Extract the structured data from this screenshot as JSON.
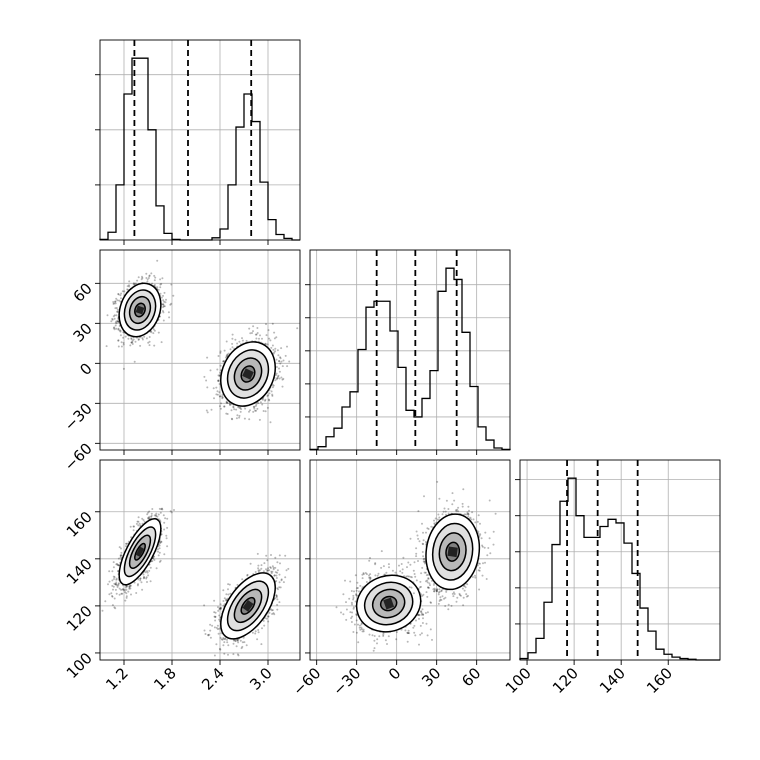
{
  "chart_data": {
    "type": "corner",
    "title": "",
    "grid": true,
    "parameters": [
      {
        "index": 0,
        "range": [
          0.9,
          3.4
        ],
        "ticks": [
          1.2,
          1.8,
          2.4,
          3.0
        ],
        "tick_labels": [
          "1.2",
          "1.8",
          "2.4",
          "3.0"
        ],
        "quantiles": [
          1.33,
          2.0,
          2.79
        ]
      },
      {
        "index": 1,
        "range": [
          -65,
          85
        ],
        "ticks": [
          -60,
          -30,
          0,
          30,
          60
        ],
        "tick_labels": [
          "−60",
          "−30",
          "0",
          "30",
          "60"
        ],
        "quantiles": [
          -15,
          14,
          45
        ]
      },
      {
        "index": 2,
        "range": [
          97,
          182
        ],
        "ticks": [
          100,
          120,
          140,
          160
        ],
        "tick_labels": [
          "100",
          "120",
          "140",
          "160"
        ],
        "quantiles": [
          117,
          130,
          147
        ]
      }
    ],
    "histograms": [
      {
        "param": 0,
        "bin_edges": [
          0.9,
          1.0,
          1.1,
          1.2,
          1.3,
          1.4,
          1.5,
          1.6,
          1.7,
          1.8,
          1.9,
          2.0,
          2.1,
          2.2,
          2.3,
          2.4,
          2.5,
          2.6,
          2.7,
          2.8,
          2.9,
          3.0,
          3.1,
          3.2,
          3.3,
          3.4
        ],
        "counts": [
          1,
          14,
          100,
          265,
          330,
          330,
          200,
          62,
          12,
          1,
          0,
          0,
          0,
          0,
          4,
          20,
          100,
          205,
          265,
          215,
          105,
          37,
          10,
          3,
          0
        ],
        "y_ticks": [
          100,
          200,
          300
        ]
      },
      {
        "param": 1,
        "bin_edges": [
          -65,
          -59,
          -53,
          -47,
          -41,
          -35,
          -29,
          -23,
          -17,
          -11,
          -5,
          1,
          7,
          13,
          19,
          25,
          31,
          37,
          43,
          49,
          55,
          61,
          67,
          73,
          79,
          85
        ],
        "counts": [
          1,
          5,
          20,
          33,
          65,
          88,
          152,
          216,
          225,
          225,
          180,
          125,
          60,
          50,
          78,
          120,
          240,
          275,
          258,
          178,
          96,
          35,
          15,
          3,
          1
        ],
        "y_ticks": [
          50,
          100,
          150,
          200,
          250
        ]
      },
      {
        "param": 2,
        "bin_edges": [
          97,
          100.4,
          103.8,
          107.2,
          110.6,
          114,
          117.4,
          120.8,
          124.2,
          127.6,
          131,
          134.4,
          137.8,
          141.2,
          144.6,
          148,
          151.4,
          154.8,
          158.2,
          161.6,
          165,
          168.4,
          171.8,
          175.2,
          178.6,
          182
        ],
        "counts": [
          2,
          10,
          30,
          80,
          160,
          220,
          252,
          200,
          170,
          170,
          185,
          195,
          190,
          162,
          120,
          72,
          40,
          15,
          8,
          4,
          2,
          1,
          0,
          0,
          0
        ],
        "y_ticks": [
          50,
          100,
          150,
          200,
          250
        ]
      }
    ],
    "scatter_panels": [
      {
        "x_param": 0,
        "y_param": 1,
        "clusters": [
          {
            "center": [
              1.4,
              40
            ],
            "sd": [
              0.13,
              10
            ],
            "rho": 0.2,
            "n": 1500
          },
          {
            "center": [
              2.75,
              -8
            ],
            "sd": [
              0.17,
              12
            ],
            "rho": 0.2,
            "n": 1500
          }
        ]
      },
      {
        "x_param": 0,
        "y_param": 2,
        "clusters": [
          {
            "center": [
              1.4,
              143
            ],
            "sd": [
              0.13,
              7
            ],
            "rho": 0.7,
            "n": 1500
          },
          {
            "center": [
              2.75,
              120
            ],
            "sd": [
              0.17,
              7
            ],
            "rho": 0.55,
            "n": 1500
          }
        ]
      },
      {
        "x_param": 1,
        "y_param": 2,
        "clusters": [
          {
            "center": [
              -6,
              121
            ],
            "sd": [
              12,
              6
            ],
            "rho": 0.1,
            "n": 1500
          },
          {
            "center": [
              42,
              143
            ],
            "sd": [
              10,
              8
            ],
            "rho": 0.1,
            "n": 1500
          }
        ]
      }
    ],
    "contour_levels_sigma": [
      0.5,
      1.0,
      1.5,
      2.0
    ],
    "colors": {
      "line": "#000000",
      "grid": "#b0b0b0",
      "points": "#000000",
      "density": "#000000"
    }
  }
}
